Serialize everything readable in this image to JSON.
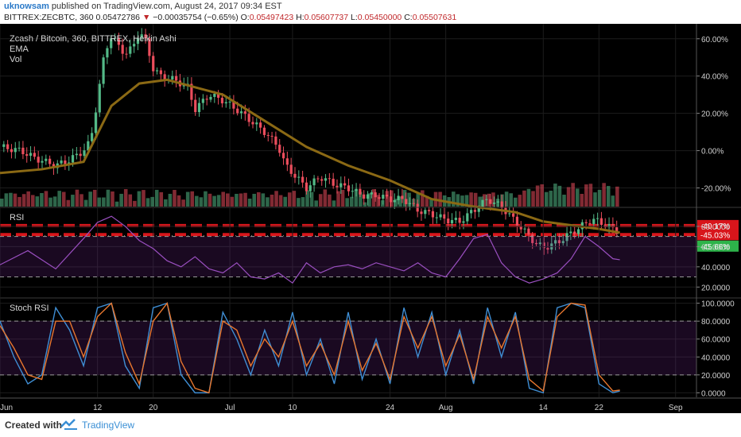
{
  "header": {
    "user": "uknowsam",
    "published": "published on TradingView.com, August 24, 2017 09:34 EST",
    "symbol": "BITTREX:ZECBTC, 360",
    "last": "0.05472786",
    "arrow": "▼",
    "change": "−0.00035754 (−0.65%)",
    "o_label": "O:",
    "o_val": "0.05497423",
    "h_label": "H:",
    "h_val": "0.05607737",
    "l_label": "L:",
    "l_val": "0.05450000",
    "c_label": "C:",
    "c_val": "0.05507631"
  },
  "panes": {
    "main": {
      "title": "Zcash / Bitcoin, 360, BITTREX, Heikin Ashi",
      "ind1": "EMA",
      "ind2": "Vol"
    },
    "rsi": {
      "title": "RSI"
    },
    "stoch": {
      "title": "Stoch RSI"
    }
  },
  "footer": {
    "created": "Created with",
    "brand": "TradingView"
  },
  "colors": {
    "background": "#000000",
    "up": "#53b987",
    "down": "#eb4d5c",
    "ema": "#8b6914",
    "rsi": "#9a4fc0",
    "stoch_k": "#3f8ed4",
    "stoch_d": "#e8772e",
    "level_red": "#d8151b"
  },
  "chart_data": [
    {
      "type": "line",
      "name": "Zcash / Bitcoin, 360, BITTREX, Heikin Ashi",
      "y_unit": "percent change",
      "ylim": [
        -30,
        68
      ],
      "y_ticks": [
        "60.00%",
        "40.00%",
        "20.00%",
        "0.00%",
        "-20.00%"
      ],
      "y_tick_values": [
        60,
        40,
        20,
        0,
        -20
      ],
      "x_ticks": [
        "Jun",
        "12",
        "20",
        "Jul",
        "10",
        "24",
        "Aug",
        "14",
        "22",
        "Sep"
      ],
      "x_tick_days": [
        0,
        14,
        22,
        33,
        42,
        56,
        64,
        78,
        86,
        97
      ],
      "xlim": [
        0,
        100
      ],
      "price_x": [
        0,
        3,
        5,
        8,
        10,
        12,
        13,
        14,
        15,
        16,
        17,
        18,
        19,
        20,
        21,
        22,
        23,
        25,
        27,
        28,
        30,
        32,
        34,
        36,
        38,
        40,
        41,
        43,
        44,
        46,
        48,
        50,
        52,
        54,
        56,
        58,
        60,
        62,
        64,
        66,
        68,
        70,
        72,
        73,
        74,
        75,
        76,
        77,
        78,
        79,
        80,
        81,
        82,
        83,
        84,
        85,
        86,
        87,
        88,
        89
      ],
      "price_y": [
        2,
        0,
        -4,
        -8,
        -5,
        0,
        5,
        28,
        52,
        62,
        56,
        52,
        55,
        64,
        58,
        44,
        40,
        38,
        34,
        22,
        30,
        27,
        22,
        16,
        10,
        2,
        -8,
        -16,
        -20,
        -14,
        -18,
        -20,
        -24,
        -24,
        -26,
        -26,
        -32,
        -34,
        -37,
        -38,
        -32,
        -26,
        -30,
        -34,
        -38,
        -42,
        -46,
        -50,
        -52,
        -51,
        -49,
        -47,
        -44,
        -42,
        -39,
        -37,
        -38,
        -40,
        -42,
        -44
      ],
      "ema_x": [
        0,
        6,
        12,
        16,
        20,
        24,
        28,
        32,
        38,
        44,
        50,
        56,
        62,
        68,
        74,
        78,
        82,
        86,
        89
      ],
      "ema_y": [
        -12,
        -10,
        -6,
        24,
        36,
        38,
        34,
        30,
        16,
        2,
        -8,
        -16,
        -26,
        -30,
        -33,
        -38,
        -40,
        -42,
        -44
      ],
      "horizontal_levels": [
        {
          "label": "-40.17%",
          "value": -40.17,
          "style": "dashed",
          "color": "#d8151b"
        },
        {
          "label": "-45.03%",
          "value": -45.03,
          "style": "dashed",
          "color": "#d8151b"
        }
      ],
      "last_value_label": {
        "label": "-45.66%",
        "value": -45.66,
        "color": "#2db34a"
      },
      "volume_bars": 140
    },
    {
      "type": "line",
      "name": "RSI",
      "ylim": [
        10,
        98
      ],
      "y_ticks": [
        "80.0000",
        "60.0000",
        "40.0000",
        "20.0000"
      ],
      "y_tick_values": [
        80,
        60,
        40,
        20
      ],
      "band": [
        30,
        70
      ],
      "x": [
        0,
        4,
        8,
        12,
        14,
        16,
        18,
        20,
        22,
        24,
        26,
        28,
        30,
        32,
        34,
        36,
        38,
        40,
        42,
        44,
        46,
        48,
        50,
        52,
        54,
        56,
        58,
        60,
        62,
        64,
        66,
        68,
        70,
        72,
        74,
        76,
        78,
        80,
        82,
        84,
        86,
        88,
        89
      ],
      "values": [
        42,
        56,
        38,
        68,
        84,
        90,
        80,
        66,
        58,
        46,
        40,
        50,
        38,
        34,
        44,
        30,
        28,
        34,
        24,
        44,
        34,
        40,
        42,
        38,
        44,
        40,
        36,
        44,
        34,
        30,
        48,
        68,
        72,
        44,
        30,
        24,
        28,
        34,
        48,
        70,
        60,
        48,
        47
      ]
    },
    {
      "type": "line",
      "name": "Stoch RSI",
      "ylim": [
        -5,
        105
      ],
      "y_ticks": [
        "100.0000",
        "80.0000",
        "60.0000",
        "40.0000",
        "20.0000",
        "0.0000"
      ],
      "y_tick_values": [
        100,
        80,
        60,
        40,
        20,
        0
      ],
      "band": [
        20,
        80
      ],
      "x": [
        0,
        2,
        4,
        6,
        8,
        10,
        12,
        14,
        16,
        18,
        20,
        22,
        24,
        26,
        28,
        30,
        32,
        34,
        36,
        38,
        40,
        42,
        44,
        46,
        48,
        50,
        52,
        54,
        56,
        58,
        60,
        62,
        64,
        66,
        68,
        70,
        72,
        74,
        76,
        78,
        80,
        82,
        84,
        86,
        88,
        89
      ],
      "k": [
        80,
        40,
        10,
        20,
        95,
        70,
        30,
        95,
        100,
        30,
        5,
        95,
        100,
        20,
        0,
        0,
        90,
        60,
        20,
        70,
        30,
        90,
        20,
        60,
        10,
        90,
        15,
        60,
        10,
        95,
        40,
        90,
        20,
        70,
        10,
        95,
        40,
        90,
        5,
        0,
        95,
        100,
        95,
        10,
        0,
        2
      ],
      "d": [
        75,
        50,
        20,
        15,
        80,
        80,
        40,
        85,
        100,
        45,
        10,
        80,
        100,
        35,
        5,
        0,
        80,
        70,
        30,
        60,
        40,
        80,
        30,
        55,
        20,
        80,
        25,
        55,
        15,
        85,
        50,
        85,
        30,
        65,
        15,
        85,
        50,
        85,
        15,
        2,
        85,
        100,
        98,
        20,
        2,
        3
      ]
    }
  ]
}
